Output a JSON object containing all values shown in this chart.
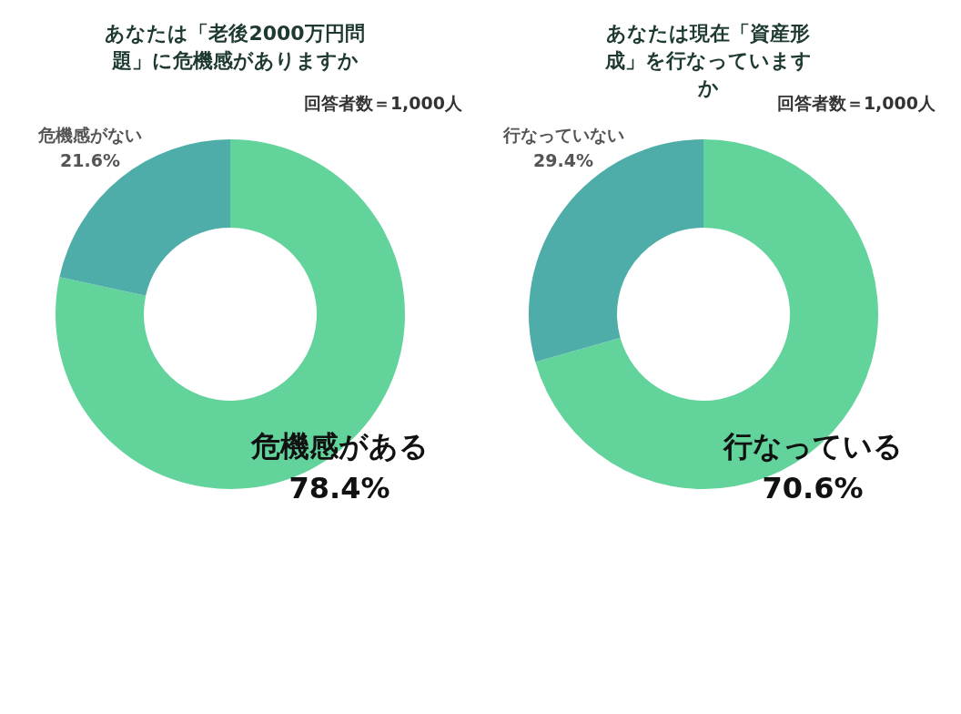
{
  "chart_data": [
    {
      "type": "donut",
      "title": "あなたは「老後2000万円問題」に危機感がありますか",
      "annotations": [
        "回答者数＝1,000人"
      ],
      "categories": [
        "危機感がある",
        "危機感がない"
      ],
      "values": [
        78.4,
        21.6
      ],
      "value_labels": [
        "78.4%",
        "21.6%"
      ],
      "colors": [
        "#63d39c",
        "#4fada9"
      ],
      "data_labels": true,
      "legend": false
    },
    {
      "type": "donut",
      "title": "あなたは現在「資産形成」を行なっていますか",
      "annotations": [
        "回答者数＝1,000人"
      ],
      "categories": [
        "行なっている",
        "行なっていない"
      ],
      "values": [
        70.6,
        29.4
      ],
      "value_labels": [
        "70.6%",
        "29.4%"
      ],
      "colors": [
        "#63d39c",
        "#4fada9"
      ],
      "data_labels": true,
      "legend": false
    }
  ]
}
